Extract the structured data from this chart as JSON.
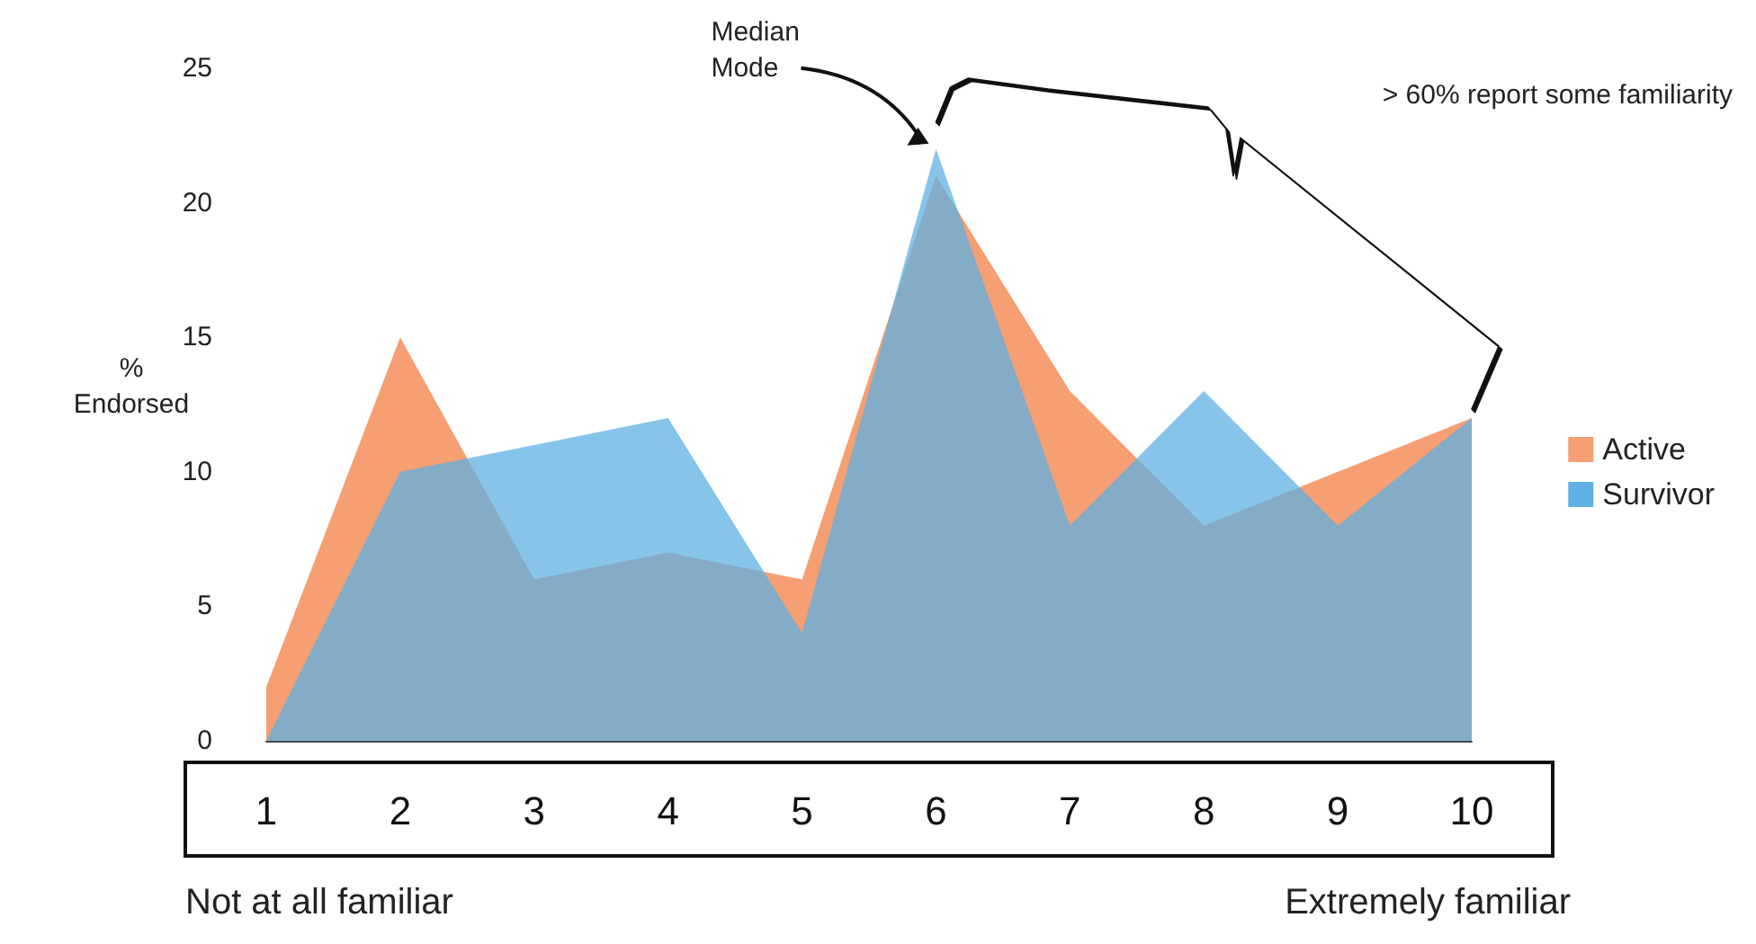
{
  "chart_data": {
    "type": "area",
    "ylabel": "%\nEndorsed",
    "categories": [
      "1",
      "2",
      "3",
      "4",
      "5",
      "6",
      "7",
      "8",
      "9",
      "10"
    ],
    "series": [
      {
        "name": "Active",
        "color": "#f59f73",
        "values": [
          2,
          15,
          6,
          7,
          6,
          21,
          13,
          8,
          10,
          12
        ]
      },
      {
        "name": "Survivor",
        "color": "#5fb0e3",
        "values": [
          0,
          10,
          11,
          12,
          4,
          22,
          8,
          13,
          8,
          12
        ]
      }
    ],
    "ylim": [
      0,
      25
    ],
    "yticks": [
      0,
      5,
      10,
      15,
      20,
      25
    ],
    "grid": false,
    "legend": "right",
    "marker": "none",
    "annotations": [
      "Median\nMode",
      "> 60% report some familiarity",
      "Not at all familiar",
      "Extremely familiar"
    ]
  }
}
